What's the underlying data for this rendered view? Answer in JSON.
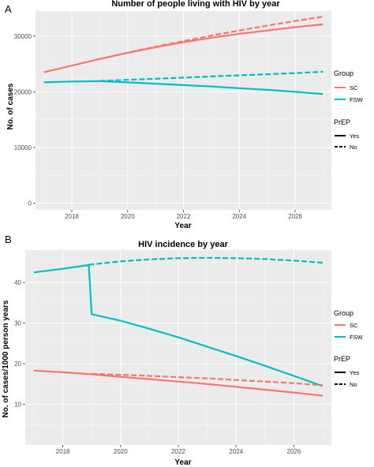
{
  "panel_labels": [
    "A",
    "B"
  ],
  "legend": {
    "group_title": "Group",
    "group_items": [
      {
        "label": "SC",
        "color": "#F8766D"
      },
      {
        "label": "FSW",
        "color": "#00BFC4"
      }
    ],
    "prep_title": "PrEP",
    "prep_items": [
      {
        "label": "Yes",
        "style": "solid"
      },
      {
        "label": "No",
        "style": "dashed"
      }
    ]
  },
  "chart_data": [
    {
      "type": "line",
      "title": "Number of people living with HIV by year",
      "xlabel": "Year",
      "ylabel": "No. of cases",
      "xlim": [
        2016.7,
        2027.3
      ],
      "ylim": [
        -1200,
        34500
      ],
      "xticks": [
        2018,
        2020,
        2022,
        2024,
        2026
      ],
      "yticks": [
        0,
        10000,
        20000,
        30000
      ],
      "grid": true,
      "legend_position": "right",
      "series": [
        {
          "group": "SC",
          "prep": "Yes",
          "color": "#F8766D",
          "dash": "solid",
          "x": [
            2017,
            2018,
            2019,
            2020,
            2021,
            2022,
            2023,
            2024,
            2025,
            2026,
            2027
          ],
          "y": [
            23500,
            24700,
            25900,
            27000,
            28000,
            28900,
            29700,
            30400,
            31000,
            31600,
            32100
          ]
        },
        {
          "group": "SC",
          "prep": "No",
          "color": "#F8766D",
          "dash": "dashed",
          "x": [
            2019,
            2020,
            2021,
            2022,
            2023,
            2024,
            2025,
            2026,
            2027
          ],
          "y": [
            25900,
            27000,
            28100,
            29100,
            30100,
            31000,
            31900,
            32700,
            33500
          ]
        },
        {
          "group": "FSW",
          "prep": "Yes",
          "color": "#00BFC4",
          "dash": "solid",
          "x": [
            2017,
            2018,
            2019,
            2020,
            2021,
            2022,
            2023,
            2024,
            2025,
            2026,
            2027
          ],
          "y": [
            21700,
            21850,
            21900,
            21700,
            21450,
            21200,
            20950,
            20650,
            20350,
            20000,
            19600
          ]
        },
        {
          "group": "FSW",
          "prep": "No",
          "color": "#00BFC4",
          "dash": "dashed",
          "x": [
            2019,
            2020,
            2021,
            2022,
            2023,
            2024,
            2025,
            2026,
            2027
          ],
          "y": [
            21950,
            22150,
            22350,
            22550,
            22750,
            22950,
            23150,
            23350,
            23600
          ]
        }
      ]
    },
    {
      "type": "line",
      "title": "HIV incidence by year",
      "xlabel": "Year",
      "ylabel": "No. of cases/1000 person years",
      "xlim": [
        2016.7,
        2027.3
      ],
      "ylim": [
        0,
        48
      ],
      "xticks": [
        2018,
        2020,
        2022,
        2024,
        2026
      ],
      "yticks": [
        10,
        20,
        30,
        40
      ],
      "grid": true,
      "legend_position": "right",
      "series": [
        {
          "group": "FSW",
          "prep": "Yes",
          "color": "#00BFC4",
          "dash": "solid",
          "x": [
            2017,
            2018,
            2018.9,
            2019,
            2020,
            2021,
            2022,
            2023,
            2024,
            2025,
            2026,
            2027
          ],
          "y": [
            42.5,
            43.4,
            44.3,
            32.2,
            30.6,
            28.6,
            26.5,
            24.2,
            21.9,
            19.5,
            17.0,
            14.5
          ]
        },
        {
          "group": "FSW",
          "prep": "No",
          "color": "#00BFC4",
          "dash": "dashed",
          "x": [
            2018.9,
            2020,
            2021,
            2022,
            2023,
            2024,
            2025,
            2026,
            2027
          ],
          "y": [
            44.4,
            45.2,
            45.7,
            46.0,
            46.1,
            46.0,
            45.8,
            45.4,
            44.9
          ]
        },
        {
          "group": "SC",
          "prep": "Yes",
          "color": "#F8766D",
          "dash": "solid",
          "x": [
            2017,
            2018,
            2019,
            2020,
            2021,
            2022,
            2023,
            2024,
            2025,
            2026,
            2027
          ],
          "y": [
            18.3,
            17.9,
            17.4,
            16.8,
            16.2,
            15.6,
            15.0,
            14.3,
            13.6,
            12.9,
            12.1
          ]
        },
        {
          "group": "SC",
          "prep": "No",
          "color": "#F8766D",
          "dash": "dashed",
          "x": [
            2019,
            2020,
            2021,
            2022,
            2023,
            2024,
            2025,
            2026,
            2027
          ],
          "y": [
            17.5,
            17.3,
            17.0,
            16.7,
            16.4,
            16.0,
            15.6,
            15.2,
            14.7
          ]
        }
      ]
    }
  ]
}
